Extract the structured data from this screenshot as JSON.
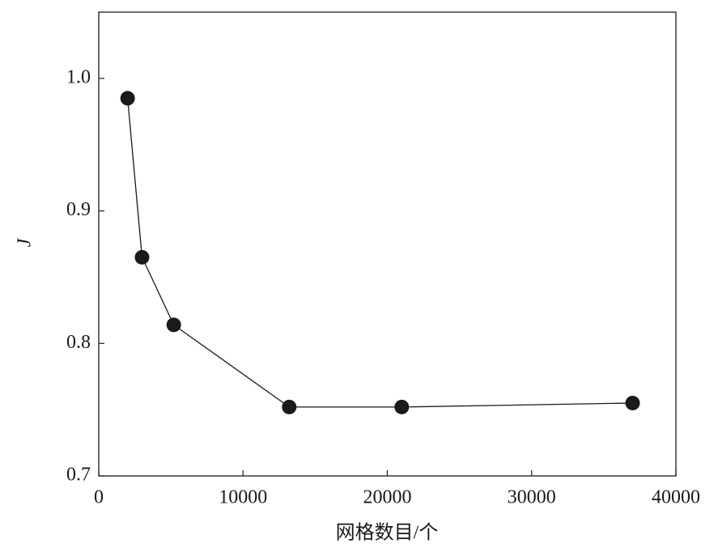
{
  "chart_data": {
    "type": "line",
    "x_label": "网格数目/个",
    "y_label": "J",
    "x": [
      2000,
      3000,
      5200,
      13200,
      21000,
      37000
    ],
    "series": [
      {
        "color": "#1a1a1a",
        "values": [
          0.985,
          0.865,
          0.814,
          0.752,
          0.752,
          0.755
        ]
      }
    ],
    "xlim": [
      0,
      40000
    ],
    "xticks": [
      0,
      10000,
      20000,
      30000,
      40000
    ],
    "ylim": [
      0.7,
      1.05
    ],
    "yticks": [
      0.7,
      0.8,
      0.9,
      {
        "value": 1,
        "label": "1.0"
      }
    ]
  }
}
